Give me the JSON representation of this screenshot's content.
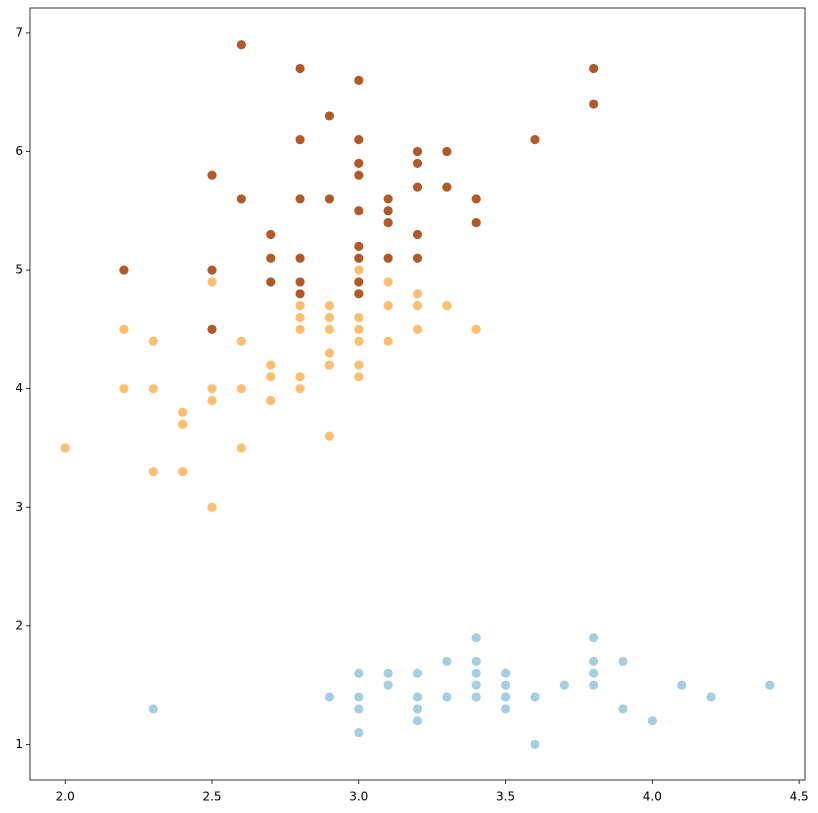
{
  "chart_data": {
    "type": "scatter",
    "xlim": [
      1.88,
      4.52
    ],
    "ylim": [
      0.7,
      7.21
    ],
    "xticks": [
      {
        "value": 2,
        "label": "2.0"
      },
      {
        "value": 2.5,
        "label": "2.5"
      },
      {
        "value": 3,
        "label": "3.0"
      },
      {
        "value": 3.5,
        "label": "3.5"
      },
      {
        "value": 4,
        "label": "4.0"
      },
      {
        "value": 4.5,
        "label": "4.5"
      }
    ],
    "yticks": [
      1,
      2,
      3,
      4,
      5,
      6,
      7
    ],
    "grid": false,
    "series": [
      {
        "color": "#a6cee3",
        "x": [
          2.3,
          2.9,
          3.0,
          3.0,
          3.0,
          3.0,
          3.1,
          3.1,
          3.2,
          3.2,
          3.2,
          3.2,
          3.3,
          3.3,
          3.4,
          3.4,
          3.4,
          3.4,
          3.4,
          3.5,
          3.5,
          3.5,
          3.5,
          3.6,
          3.6,
          3.7,
          3.8,
          3.8,
          3.8,
          3.8,
          3.9,
          3.9,
          4.0,
          4.1,
          4.2,
          4.4
        ],
        "values": [
          1.3,
          1.4,
          1.6,
          1.4,
          1.3,
          1.1,
          1.6,
          1.5,
          1.6,
          1.4,
          1.3,
          1.2,
          1.7,
          1.4,
          1.9,
          1.7,
          1.6,
          1.5,
          1.4,
          1.6,
          1.5,
          1.4,
          1.3,
          1.4,
          1.0,
          1.5,
          1.9,
          1.7,
          1.6,
          1.5,
          1.7,
          1.3,
          1.2,
          1.5,
          1.4,
          1.5
        ]
      },
      {
        "color": "#fdbf6f",
        "x": [
          2.0,
          2.2,
          2.2,
          2.3,
          2.3,
          2.3,
          2.4,
          2.4,
          2.4,
          2.5,
          2.5,
          2.5,
          2.5,
          2.6,
          2.6,
          2.6,
          2.7,
          2.7,
          2.7,
          2.8,
          2.8,
          2.8,
          2.8,
          2.8,
          2.9,
          2.9,
          2.9,
          2.9,
          2.9,
          2.9,
          3.0,
          3.0,
          3.0,
          3.0,
          3.0,
          3.0,
          3.0,
          3.1,
          3.1,
          3.1,
          3.2,
          3.2,
          3.2,
          3.3,
          3.4
        ],
        "values": [
          3.5,
          4.5,
          4.0,
          4.4,
          4.0,
          3.3,
          3.8,
          3.7,
          3.3,
          4.9,
          4.0,
          3.9,
          3.0,
          4.4,
          4.0,
          3.5,
          4.2,
          4.1,
          3.9,
          4.7,
          4.6,
          4.5,
          4.1,
          4.0,
          4.7,
          4.6,
          4.5,
          4.3,
          4.2,
          3.6,
          5.0,
          4.8,
          4.6,
          4.5,
          4.4,
          4.2,
          4.1,
          4.9,
          4.7,
          4.4,
          4.8,
          4.7,
          4.5,
          4.7,
          4.5
        ]
      },
      {
        "color": "#b15928",
        "x": [
          2.2,
          2.5,
          2.5,
          2.5,
          2.6,
          2.6,
          2.7,
          2.7,
          2.7,
          2.8,
          2.8,
          2.8,
          2.8,
          2.8,
          2.8,
          2.9,
          2.9,
          3.0,
          3.0,
          3.0,
          3.0,
          3.0,
          3.0,
          3.0,
          3.0,
          3.0,
          3.1,
          3.1,
          3.1,
          3.1,
          3.2,
          3.2,
          3.2,
          3.2,
          3.2,
          3.3,
          3.3,
          3.4,
          3.4,
          3.6,
          3.8,
          3.8
        ],
        "values": [
          5.0,
          5.8,
          5.0,
          4.5,
          6.9,
          5.6,
          5.3,
          5.1,
          4.9,
          6.7,
          6.1,
          5.6,
          5.1,
          4.9,
          4.8,
          6.3,
          5.6,
          6.6,
          6.1,
          5.9,
          5.8,
          5.5,
          5.2,
          5.1,
          4.9,
          4.8,
          5.6,
          5.5,
          5.4,
          5.1,
          6.0,
          5.9,
          5.7,
          5.3,
          5.1,
          6.0,
          5.7,
          5.6,
          5.4,
          6.1,
          6.7,
          6.4
        ]
      }
    ]
  }
}
